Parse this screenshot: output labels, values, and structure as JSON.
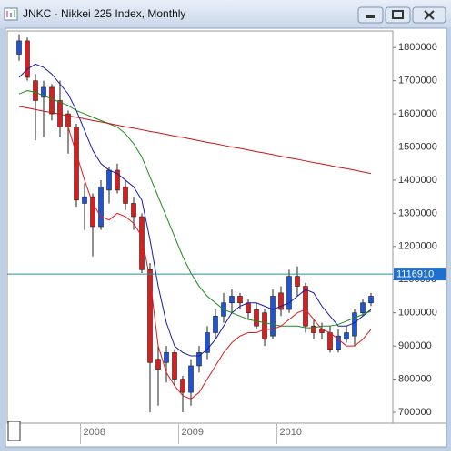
{
  "chart_data": {
    "type": "candlestick",
    "title": "JNKC - Nikkei 225 Index, Monthly",
    "categories": [
      null,
      null,
      null,
      null,
      null,
      null,
      null,
      null,
      "2008",
      null,
      null,
      null,
      null,
      null,
      null,
      null,
      null,
      null,
      null,
      null,
      "2009",
      null,
      null,
      null,
      null,
      null,
      null,
      null,
      null,
      null,
      null,
      null,
      "2010",
      null,
      null,
      null,
      null,
      null,
      null,
      null,
      null,
      null,
      null,
      null
    ],
    "open": [
      1780000,
      1820000,
      1700000,
      1650000,
      1680000,
      1640000,
      1600000,
      1560000,
      1330000,
      1350000,
      1260000,
      1370000,
      1430000,
      1380000,
      1330000,
      1290000,
      1130000,
      860000,
      850000,
      880000,
      800000,
      760000,
      840000,
      880000,
      940000,
      990000,
      1030000,
      1050000,
      1030000,
      1010000,
      1000000,
      930000,
      1060000,
      1010000,
      1110000,
      1080000,
      960000,
      950000,
      940000,
      890000,
      920000,
      930000,
      1000000,
      1030000
    ],
    "high": [
      1840000,
      1830000,
      1720000,
      1700000,
      1690000,
      1700000,
      1610000,
      1570000,
      1390000,
      1360000,
      1400000,
      1440000,
      1450000,
      1400000,
      1350000,
      1300000,
      1150000,
      900000,
      900000,
      890000,
      810000,
      860000,
      900000,
      960000,
      1010000,
      1060000,
      1070000,
      1060000,
      1040000,
      1030000,
      1010000,
      1070000,
      1080000,
      1130000,
      1140000,
      1090000,
      980000,
      970000,
      960000,
      950000,
      960000,
      1010000,
      1040000,
      1060000
    ],
    "low": [
      1760000,
      1700000,
      1520000,
      1530000,
      1580000,
      1530000,
      1480000,
      1320000,
      1250000,
      1170000,
      1250000,
      1330000,
      1360000,
      1310000,
      1250000,
      1120000,
      700000,
      720000,
      790000,
      780000,
      700000,
      720000,
      820000,
      860000,
      920000,
      970000,
      1000000,
      1010000,
      980000,
      950000,
      900000,
      920000,
      990000,
      1000000,
      1050000,
      940000,
      920000,
      920000,
      880000,
      880000,
      910000,
      900000,
      990000,
      1020000
    ],
    "close": [
      1820000,
      1710000,
      1640000,
      1680000,
      1600000,
      1560000,
      1560000,
      1340000,
      1350000,
      1260000,
      1380000,
      1430000,
      1370000,
      1330000,
      1290000,
      1130000,
      850000,
      830000,
      880000,
      800000,
      760000,
      840000,
      880000,
      940000,
      990000,
      1030000,
      1050000,
      1030000,
      1000000,
      960000,
      920000,
      1050000,
      1010000,
      1110000,
      1080000,
      960000,
      940000,
      940000,
      890000,
      930000,
      940000,
      1000000,
      1030000,
      1050000
    ],
    "up_color": "#1e55d6",
    "down_color": "#d81e1e",
    "overlays": [
      {
        "color": "#1a1aa8",
        "values": [
          1710000,
          1735000,
          1750000,
          1740000,
          1720000,
          1690000,
          1660000,
          1610000,
          1550000,
          1490000,
          1450000,
          1430000,
          1420000,
          1400000,
          1380000,
          1340000,
          1220000,
          1080000,
          970000,
          900000,
          880000,
          870000,
          870000,
          890000,
          920000,
          960000,
          1000000,
          1020000,
          1030000,
          1030000,
          1020000,
          1010000,
          1020000,
          1030000,
          1050000,
          1070000,
          1060000,
          1020000,
          990000,
          960000,
          960000,
          970000,
          990000,
          1010000
        ]
      },
      {
        "color": "#1f8a1f",
        "values": [
          1660000,
          1670000,
          1665000,
          1655000,
          1645000,
          1635000,
          1625000,
          1610000,
          1600000,
          1590000,
          1580000,
          1570000,
          1560000,
          1540000,
          1510000,
          1470000,
          1410000,
          1350000,
          1290000,
          1230000,
          1170000,
          1120000,
          1080000,
          1050000,
          1030000,
          1010000,
          1000000,
          990000,
          980000,
          975000,
          970000,
          965000,
          960000,
          960000,
          960000,
          955000,
          955000,
          960000,
          960000,
          965000,
          975000,
          985000,
          995000,
          1005000
        ]
      },
      {
        "color": "#d81e1e",
        "values": [
          null,
          null,
          null,
          null,
          null,
          null,
          1560000,
          1480000,
          1400000,
          1330000,
          1290000,
          1280000,
          1300000,
          1290000,
          1270000,
          1230000,
          1100000,
          900000,
          820000,
          780000,
          750000,
          740000,
          760000,
          800000,
          840000,
          880000,
          910000,
          930000,
          940000,
          940000,
          950000,
          950000,
          960000,
          980000,
          1000000,
          1010000,
          980000,
          950000,
          940000,
          920000,
          900000,
          900000,
          920000,
          950000
        ]
      },
      {
        "color": "#c81414",
        "values": [
          1622000,
          1618000,
          1613000,
          1608000,
          1604000,
          1599000,
          1594000,
          1590000,
          1585000,
          1580000,
          1576000,
          1571000,
          1566000,
          1561000,
          1557000,
          1552000,
          1547000,
          1543000,
          1538000,
          1533000,
          1529000,
          1524000,
          1519000,
          1514000,
          1510000,
          1505000,
          1500000,
          1496000,
          1491000,
          1486000,
          1482000,
          1477000,
          1472000,
          1467000,
          1463000,
          1458000,
          1453000,
          1449000,
          1444000,
          1439000,
          1435000,
          1430000,
          1425000,
          1420000
        ]
      }
    ],
    "last_price": 1116910,
    "last_price_color": "#2e8c96",
    "ylim": [
      667000,
      1850000
    ],
    "yticks": [
      700000,
      800000,
      900000,
      1000000,
      1100000,
      1200000,
      1300000,
      1400000,
      1500000,
      1600000,
      1700000,
      1800000
    ]
  }
}
